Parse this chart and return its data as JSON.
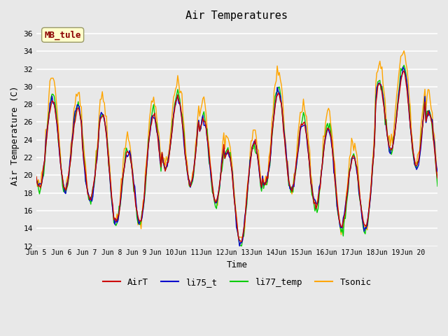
{
  "title": "Air Temperatures",
  "xlabel": "Time",
  "ylabel": "Air Temperature (C)",
  "ylim": [
    12,
    37
  ],
  "yticks": [
    12,
    14,
    16,
    18,
    20,
    22,
    24,
    26,
    28,
    30,
    32,
    34,
    36
  ],
  "background_color": "#e8e8e8",
  "plot_bg_color": "#e8e8e8",
  "annotation_text": "MB_tule",
  "annotation_color": "#8b0000",
  "annotation_bg": "#ffffcc",
  "lines": {
    "AirT": {
      "color": "#cc0000",
      "zorder": 4
    },
    "li75_t": {
      "color": "#0000cc",
      "zorder": 3
    },
    "li77_temp": {
      "color": "#00cc00",
      "zorder": 2
    },
    "Tsonic": {
      "color": "#ffa500",
      "zorder": 1
    }
  },
  "legend_items": [
    {
      "label": "AirT",
      "color": "#cc0000"
    },
    {
      "label": "li75_t",
      "color": "#0000cc"
    },
    {
      "label": "li77_temp",
      "color": "#00cc00"
    },
    {
      "label": "Tsonic",
      "color": "#ffa500"
    }
  ],
  "xtick_labels": [
    "Jun 5",
    "Jun 6",
    "Jun 7",
    "Jun 8",
    "Jun 9",
    "Jun 10",
    "Jun 11",
    "Jun 12",
    "Jun 13",
    "Jun 14",
    "Jun 15",
    "Jun 16",
    "Jun 17",
    "Jun 18",
    "Jun 19",
    "Jun 20",
    ""
  ],
  "n_days": 16,
  "start_day": 5
}
